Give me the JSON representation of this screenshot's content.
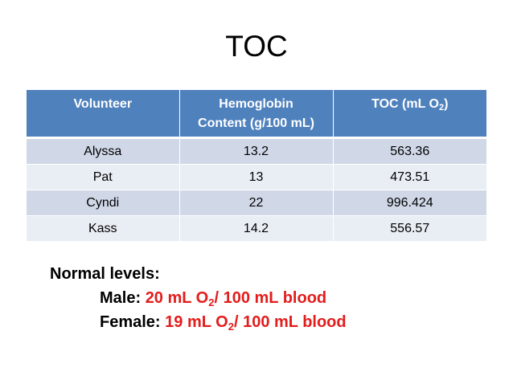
{
  "title": "TOC",
  "table": {
    "headers": {
      "volunteer": "Volunteer",
      "hemoglobin_line1": "Hemoglobin",
      "hemoglobin_line2": "Content (g/100 mL)",
      "toc_prefix": "TOC (mL O",
      "toc_sub": "2",
      "toc_suffix": ")"
    },
    "rows": [
      {
        "volunteer": "Alyssa",
        "hemoglobin": "13.2",
        "toc": "563.36"
      },
      {
        "volunteer": "Pat",
        "hemoglobin": "13",
        "toc": "473.51"
      },
      {
        "volunteer": "Cyndi",
        "hemoglobin": "22",
        "toc": "996.424"
      },
      {
        "volunteer": "Kass",
        "hemoglobin": "14.2",
        "toc": "556.57"
      }
    ]
  },
  "normal_levels": {
    "heading": "Normal levels:",
    "male_label": "Male: ",
    "male_value_prefix": "20 mL O",
    "male_value_sub": "2",
    "male_value_suffix": "/ 100 mL blood",
    "female_label": "Female: ",
    "female_value_prefix": "19 mL O",
    "female_value_sub": "2",
    "female_value_suffix": "/ 100 mL blood"
  },
  "colors": {
    "header_bg": "#4f81bd",
    "row_odd": "#d0d8e8",
    "row_even": "#e9edf4",
    "highlight_red": "#e31c1c"
  }
}
